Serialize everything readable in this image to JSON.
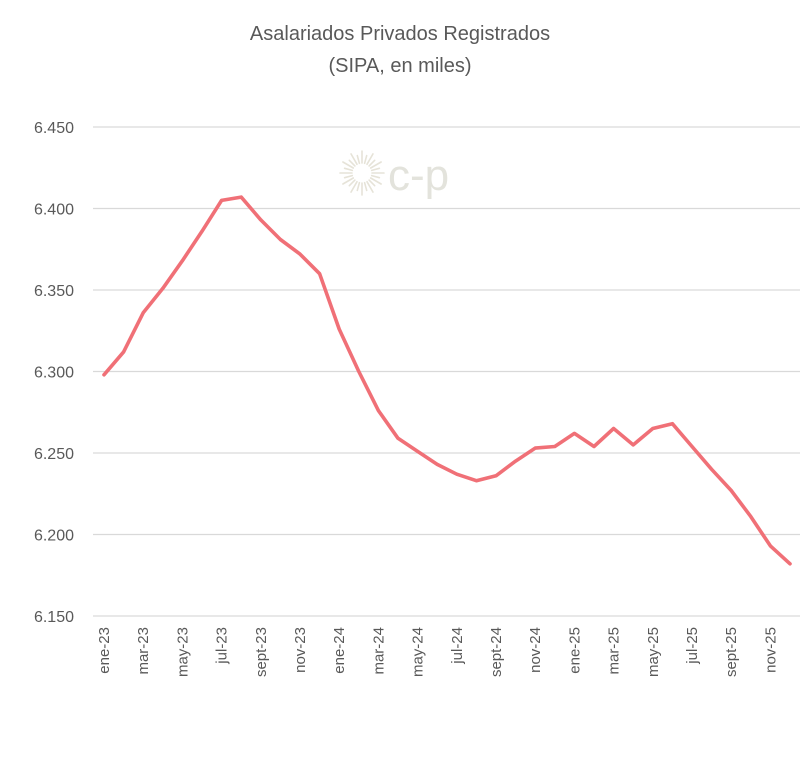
{
  "chart_data": {
    "type": "line",
    "title": "Asalariados Privados Registrados",
    "subtitle": "(SIPA, en miles)",
    "xlabel": "",
    "ylabel": "",
    "ylim": [
      6150,
      6450
    ],
    "y_ticks": [
      6150,
      6200,
      6250,
      6300,
      6350,
      6400,
      6450
    ],
    "y_tick_labels": [
      "6.150",
      "6.200",
      "6.250",
      "6.300",
      "6.350",
      "6.400",
      "6.450"
    ],
    "grid": true,
    "x": [
      "ene-23",
      "feb-23",
      "mar-23",
      "abr-23",
      "may-23",
      "jun-23",
      "jul-23",
      "ago-23",
      "sept-23",
      "oct-23",
      "nov-23",
      "dic-23",
      "ene-24",
      "feb-24",
      "mar-24",
      "abr-24",
      "may-24",
      "jun-24",
      "jul-24",
      "ago-24",
      "sept-24",
      "oct-24",
      "nov-24",
      "dic-24",
      "ene-25",
      "feb-25",
      "mar-25",
      "abr-25",
      "may-25",
      "jun-25",
      "jul-25",
      "ago-25",
      "sept-25",
      "oct-25",
      "nov-25",
      "dic-25"
    ],
    "x_tick_labels": [
      "ene-23",
      "mar-23",
      "may-23",
      "jul-23",
      "sept-23",
      "nov-23",
      "ene-24",
      "mar-24",
      "may-24",
      "jul-24",
      "sept-24",
      "nov-24",
      "ene-25",
      "mar-25",
      "may-25",
      "jul-25",
      "sept-25",
      "nov-25"
    ],
    "series": [
      {
        "name": "Asalariados Privados Registrados",
        "color": "#f07077",
        "values": [
          6298,
          6312,
          6336,
          6351,
          6368,
          6386,
          6405,
          6407,
          6393,
          6381,
          6372,
          6360,
          6326,
          6300,
          6276,
          6259,
          6251,
          6243,
          6237,
          6233,
          6236,
          6245,
          6253,
          6254,
          6262,
          6254,
          6265,
          6255,
          6265,
          6268,
          6254,
          6240,
          6227,
          6211,
          6193,
          6182
        ]
      }
    ],
    "watermark": "c-p"
  }
}
